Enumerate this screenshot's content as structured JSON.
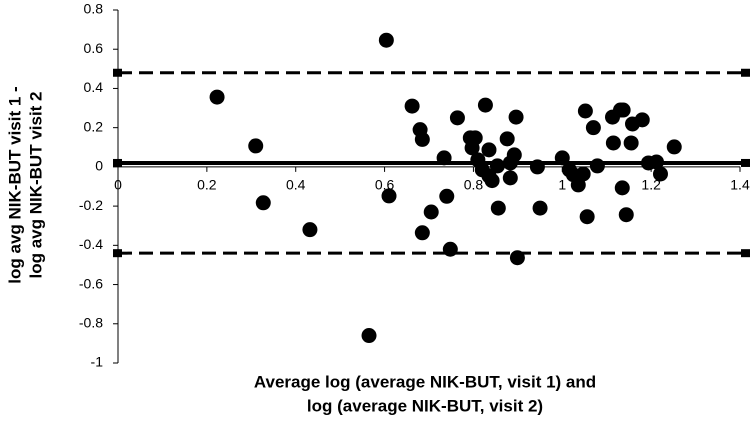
{
  "chart_data": {
    "type": "scatter",
    "ylabel": [
      "log avg NIK-BUT  visit 1 -",
      "log avg NIK-BUT  visit 2"
    ],
    "xlabel": [
      "Average log (average  NIK-BUT,  visit 1) and",
      "log (average NIK-BUT,  visit 2)"
    ],
    "xlim": [
      0,
      1.4
    ],
    "xticks": [
      0,
      0.2,
      0.4,
      0.6,
      0.8,
      1,
      1.2,
      1.4
    ],
    "ylim": [
      -1,
      0.8
    ],
    "yticks": [
      -1,
      -0.8,
      -0.6,
      -0.4,
      -0.2,
      0,
      0.2,
      0.4,
      0.6,
      0.8
    ],
    "color": "#000000",
    "hlines": [
      {
        "value": 0.02,
        "style": "solid"
      },
      {
        "value": 0.48,
        "style": "dashed"
      },
      {
        "value": -0.44,
        "style": "dashed"
      }
    ],
    "x": [
      0.223,
      0.31,
      0.327,
      0.432,
      0.565,
      0.604,
      0.61,
      0.662,
      0.68,
      0.685,
      0.685,
      0.705,
      0.74,
      0.748,
      0.764,
      0.734,
      0.793,
      0.804,
      0.797,
      0.81,
      0.82,
      0.827,
      0.835,
      0.835,
      0.842,
      0.854,
      0.856,
      0.876,
      0.883,
      0.883,
      0.892,
      0.896,
      0.899,
      0.944,
      0.95,
      1.0,
      1.016,
      1.025,
      1.036,
      1.047,
      1.052,
      1.056,
      1.07,
      1.079,
      1.113,
      1.115,
      1.131,
      1.135,
      1.137,
      1.144,
      1.155,
      1.158,
      1.18,
      1.194,
      1.212,
      1.221,
      1.252
    ],
    "values": [
      0.356,
      0.107,
      -0.183,
      -0.32,
      -0.86,
      0.646,
      -0.148,
      0.31,
      0.19,
      0.14,
      -0.336,
      -0.23,
      -0.15,
      -0.42,
      0.25,
      0.046,
      0.148,
      0.148,
      0.097,
      0.036,
      -0.015,
      0.315,
      0.087,
      -0.046,
      -0.07,
      0.005,
      -0.21,
      0.143,
      0.02,
      -0.056,
      0.061,
      0.254,
      -0.463,
      0,
      -0.21,
      0.046,
      -0.015,
      -0.04,
      -0.092,
      -0.036,
      0.285,
      -0.254,
      0.2,
      0.005,
      0.254,
      0.122,
      0.29,
      -0.107,
      0.29,
      -0.244,
      0.122,
      0.219,
      0.24,
      0.02,
      0.025,
      -0.036,
      0.102
    ]
  }
}
